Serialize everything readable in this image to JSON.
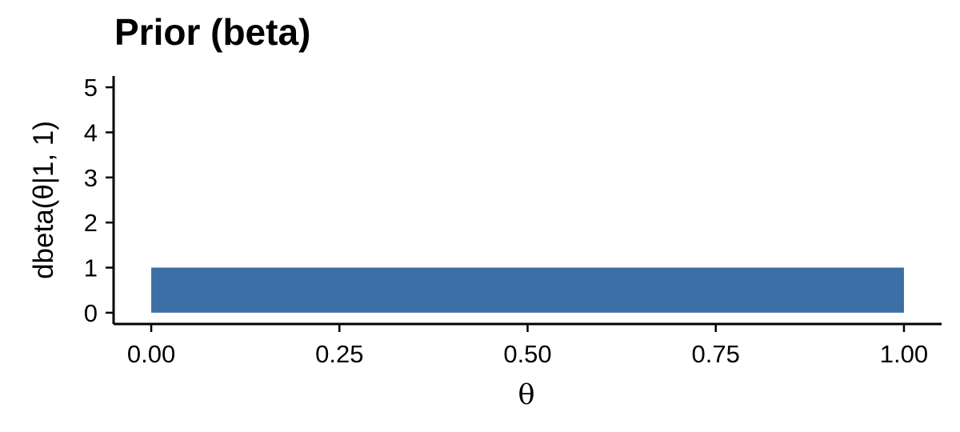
{
  "chart_data": {
    "type": "area",
    "title": "Prior (beta)",
    "xlabel": "θ",
    "ylabel": "dbeta(θ|1, 1)",
    "x": [
      0.0,
      1.0
    ],
    "y": [
      1.0,
      1.0
    ],
    "xlim": [
      -0.05,
      1.05
    ],
    "ylim": [
      -0.25,
      5.25
    ],
    "x_ticks": [
      0,
      0.25,
      0.5,
      0.75,
      1
    ],
    "x_tick_labels": [
      "0.00",
      "0.25",
      "0.50",
      "0.75",
      "1.00"
    ],
    "y_ticks": [
      0,
      1,
      2,
      3,
      4,
      5
    ],
    "y_tick_labels": [
      "0",
      "1",
      "2",
      "3",
      "4",
      "5"
    ],
    "fill_color": "#3B6FA6",
    "grid": false,
    "legend": "none"
  }
}
